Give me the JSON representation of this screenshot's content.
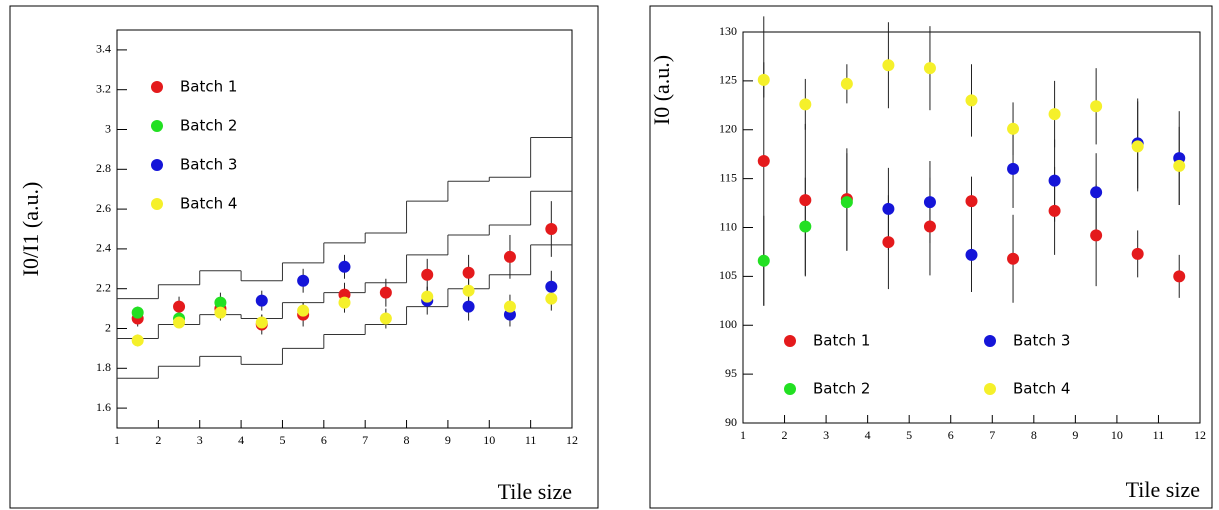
{
  "chart_data": [
    {
      "type": "scatter",
      "y_label": "I0/I1 (a.u.)",
      "x_label": "Tile size",
      "x": [
        1.5,
        2.5,
        3.5,
        4.5,
        5.5,
        6.5,
        7.5,
        8.5,
        9.5,
        10.5,
        11.5
      ],
      "xlim": [
        1,
        12
      ],
      "ylim": [
        1.5,
        3.5
      ],
      "xticks": [
        1,
        2,
        3,
        4,
        5,
        6,
        7,
        8,
        9,
        10,
        11,
        12
      ],
      "yticks": [
        1.6,
        1.8,
        2,
        2.2,
        2.4,
        2.6,
        2.8,
        3,
        3.2,
        3.4
      ],
      "legend": "upper left",
      "series": [
        {
          "name": "Batch 1",
          "color": "#e41a1c",
          "values": [
            2.05,
            2.11,
            2.1,
            2.02,
            2.07,
            2.17,
            2.18,
            2.27,
            2.28,
            2.36,
            2.5
          ],
          "errors": [
            0.04,
            0.05,
            0.05,
            0.05,
            0.06,
            0.06,
            0.07,
            0.08,
            0.09,
            0.11,
            0.14
          ]
        },
        {
          "name": "Batch 2",
          "color": "#22e022",
          "values": [
            2.08,
            2.05,
            2.13,
            null,
            null,
            null,
            null,
            null,
            null,
            null,
            null
          ],
          "errors": [
            0.03,
            0.04,
            0.05,
            null,
            null,
            null,
            null,
            null,
            null,
            null,
            null
          ]
        },
        {
          "name": "Batch 3",
          "color": "#1515d8",
          "values": [
            null,
            null,
            null,
            2.14,
            2.24,
            2.31,
            null,
            2.14,
            2.11,
            2.07,
            2.21
          ],
          "errors": [
            null,
            null,
            null,
            0.05,
            0.06,
            0.06,
            null,
            0.07,
            0.07,
            0.06,
            0.08
          ]
        },
        {
          "name": "Batch 4",
          "color": "#f5f02a",
          "values": [
            1.94,
            2.03,
            2.08,
            2.03,
            2.09,
            2.13,
            2.05,
            2.16,
            2.19,
            2.11,
            2.15
          ],
          "errors": [
            0.03,
            0.03,
            0.04,
            0.04,
            0.04,
            0.05,
            0.05,
            0.05,
            0.06,
            0.06,
            0.06
          ]
        }
      ],
      "bins": [
        1,
        2,
        3,
        4,
        5,
        6,
        7,
        8,
        9,
        10,
        11,
        12
      ],
      "steps": [
        {
          "values": [
            2.15,
            2.22,
            2.29,
            2.24,
            2.33,
            2.43,
            2.48,
            2.64,
            2.74,
            2.76,
            2.96
          ]
        },
        {
          "values": [
            1.95,
            2.02,
            2.07,
            2.05,
            2.13,
            2.18,
            2.23,
            2.37,
            2.47,
            2.52,
            2.69
          ]
        },
        {
          "values": [
            1.75,
            1.81,
            1.86,
            1.82,
            1.9,
            1.97,
            2.02,
            2.11,
            2.2,
            2.27,
            2.42
          ]
        }
      ]
    },
    {
      "type": "scatter",
      "y_label": "I0 (a.u.)",
      "x_label": "Tile size",
      "x": [
        1.5,
        2.5,
        3.5,
        4.5,
        5.5,
        6.5,
        7.5,
        8.5,
        9.5,
        10.5,
        11.5
      ],
      "xlim": [
        1,
        12
      ],
      "ylim": [
        90,
        130
      ],
      "xticks": [
        1,
        2,
        3,
        4,
        5,
        6,
        7,
        8,
        9,
        10,
        11,
        12
      ],
      "yticks": [
        90,
        95,
        100,
        105,
        110,
        115,
        120,
        125,
        130
      ],
      "legend": "lower",
      "series": [
        {
          "name": "Batch 1",
          "color": "#e41a1c",
          "values": [
            116.8,
            112.8,
            112.9,
            108.5,
            110.1,
            112.7,
            106.8,
            111.7,
            109.2,
            107.3,
            105.0
          ],
          "errors": [
            14.8,
            7.8,
            5.2,
            4.8,
            5.0,
            2.5,
            4.5,
            4.5,
            5.2,
            2.4,
            2.2
          ]
        },
        {
          "name": "Batch 2",
          "color": "#22e022",
          "values": [
            106.6,
            110.1,
            112.6,
            null,
            null,
            null,
            null,
            null,
            null,
            null,
            null
          ],
          "errors": [
            4.6,
            5.0,
            5.0,
            null,
            null,
            null,
            null,
            null,
            null,
            null,
            null
          ]
        },
        {
          "name": "Batch 3",
          "color": "#1515d8",
          "values": [
            null,
            null,
            null,
            111.9,
            112.6,
            107.2,
            116.0,
            114.8,
            113.6,
            118.6,
            117.1
          ],
          "errors": [
            null,
            null,
            null,
            4.2,
            4.2,
            3.8,
            4.0,
            4.2,
            4.0,
            4.6,
            4.8
          ]
        },
        {
          "name": "Batch 4",
          "color": "#f5f02a",
          "values": [
            125.1,
            122.6,
            124.7,
            126.6,
            126.3,
            123.0,
            120.1,
            121.6,
            122.4,
            118.3,
            116.3
          ],
          "errors": [
            1.8,
            2.6,
            2.0,
            4.4,
            4.3,
            3.7,
            2.7,
            3.4,
            3.9,
            4.6,
            4.0
          ]
        }
      ]
    }
  ]
}
